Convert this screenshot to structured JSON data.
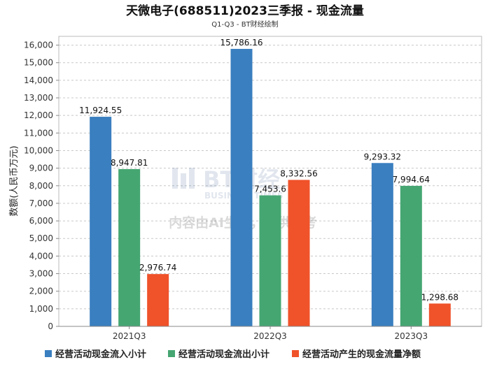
{
  "chart_data": {
    "type": "bar",
    "title": "天微电子(688511)2023三季报 - 现金流量",
    "subtitle": "Q1-Q3 - BT财经绘制",
    "ylabel": "数额(人民币万元)",
    "xlabel": "",
    "ylim": [
      0,
      16500
    ],
    "yticks": [
      0,
      1000,
      2000,
      3000,
      4000,
      5000,
      6000,
      7000,
      8000,
      9000,
      10000,
      11000,
      12000,
      13000,
      14000,
      15000,
      16000
    ],
    "ytick_labels": [
      "0",
      "1,000",
      "2,000",
      "3,000",
      "4,000",
      "5,000",
      "6,000",
      "7,000",
      "8,000",
      "9,000",
      "10,000",
      "11,000",
      "12,000",
      "13,000",
      "14,000",
      "15,000",
      "16,000"
    ],
    "grid": true,
    "legend_position": "bottom",
    "categories": [
      "2021Q3",
      "2022Q3",
      "2023Q3"
    ],
    "series": [
      {
        "name": "经营活动现金流入小计",
        "color": "#3a7fbf",
        "values": [
          11924.55,
          15786.16,
          9293.32
        ],
        "labels": [
          "11,924.55",
          "15,786.16",
          "9,293.32"
        ]
      },
      {
        "name": "经营活动现金流出小计",
        "color": "#45a672",
        "values": [
          8947.81,
          7453.6,
          7994.64
        ],
        "labels": [
          "8,947.81",
          "7,453.6",
          "7,994.64"
        ]
      },
      {
        "name": "经营活动产生的现金流量净额",
        "color": "#f0522a",
        "values": [
          2976.74,
          8332.56,
          1298.68
        ],
        "labels": [
          "2,976.74",
          "8,332.56",
          "1,298.68"
        ]
      }
    ]
  },
  "watermark": {
    "brand": "BT财经",
    "brand_sub": "BUSINESS TIMES",
    "notice": "内容由AI生成，仅供参考"
  }
}
